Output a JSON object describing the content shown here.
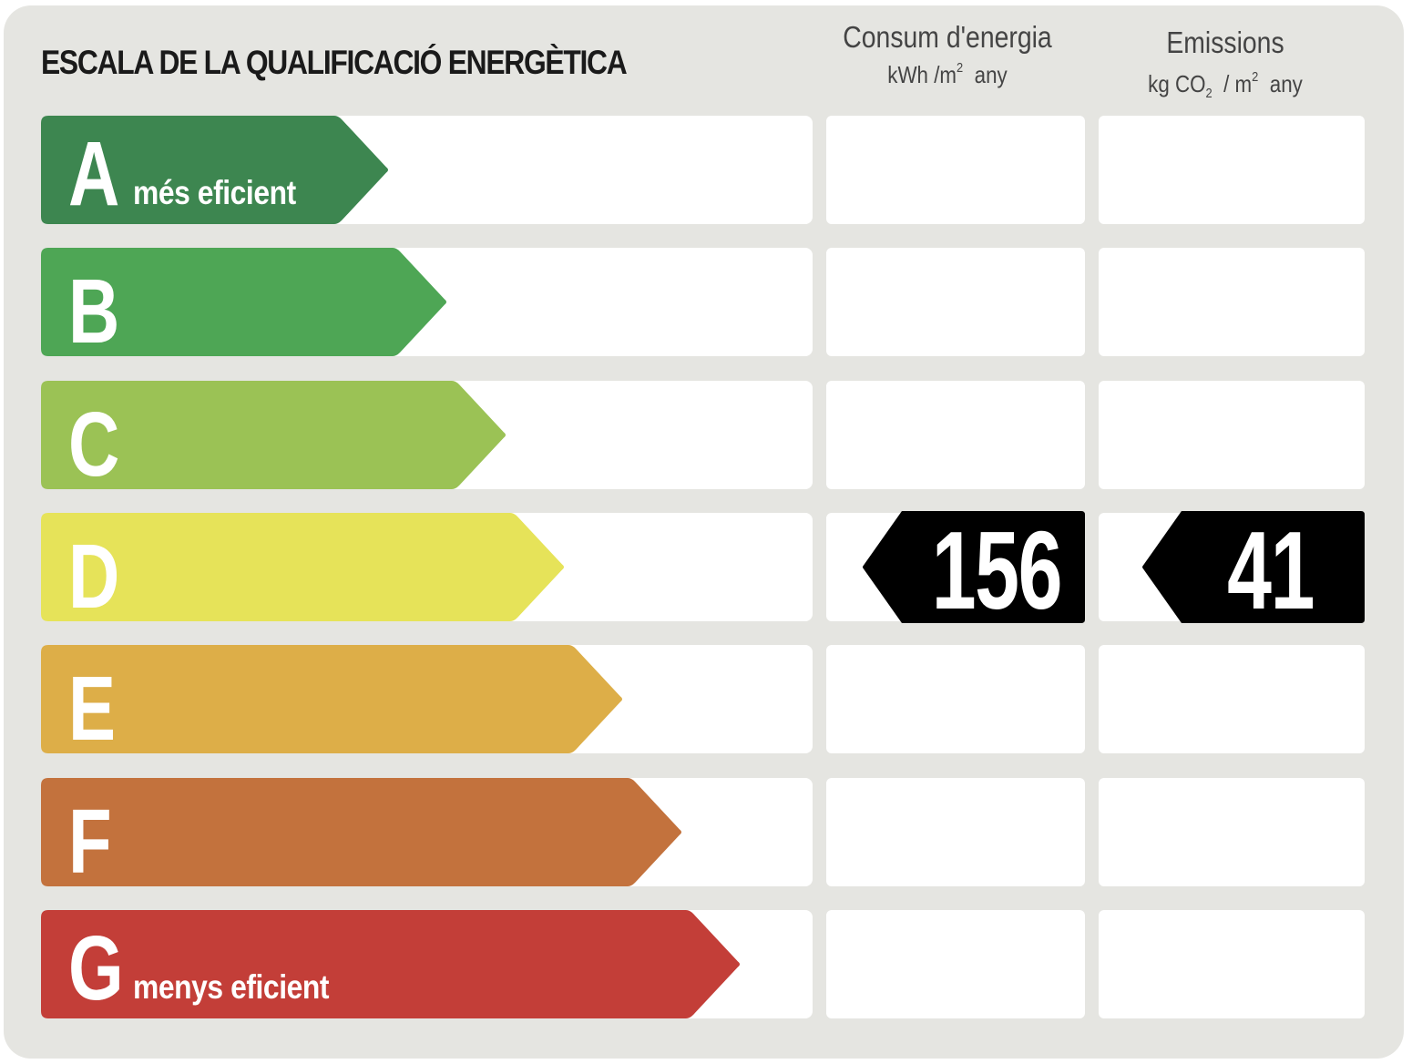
{
  "title": "ESCALA DE LA QUALIFICACIÓ ENERGÈTICA",
  "columns": {
    "consumption": {
      "label": "Consum d'energia",
      "unit_prefix": "kWh /m",
      "unit_sup": "2",
      "unit_suffix": "any"
    },
    "emissions": {
      "label": "Emissions",
      "unit_prefix": "kg CO",
      "unit_sub": "2",
      "unit_mid": "/ m",
      "unit_sup": "2",
      "unit_suffix": "any"
    }
  },
  "ratings": [
    {
      "letter": "A",
      "sublabel": "més eficient",
      "color": "#3d8650"
    },
    {
      "letter": "B",
      "sublabel": "",
      "color": "#4ea655"
    },
    {
      "letter": "C",
      "sublabel": "",
      "color": "#9bc255"
    },
    {
      "letter": "D",
      "sublabel": "",
      "color": "#e6e359"
    },
    {
      "letter": "E",
      "sublabel": "",
      "color": "#ddae48"
    },
    {
      "letter": "F",
      "sublabel": "",
      "color": "#c3723d"
    },
    {
      "letter": "G",
      "sublabel": "menys eficient",
      "color": "#c33e38"
    }
  ],
  "result": {
    "rating": "D",
    "consumption_value": "156",
    "emissions_value": "41",
    "marker_color": "#000000"
  }
}
